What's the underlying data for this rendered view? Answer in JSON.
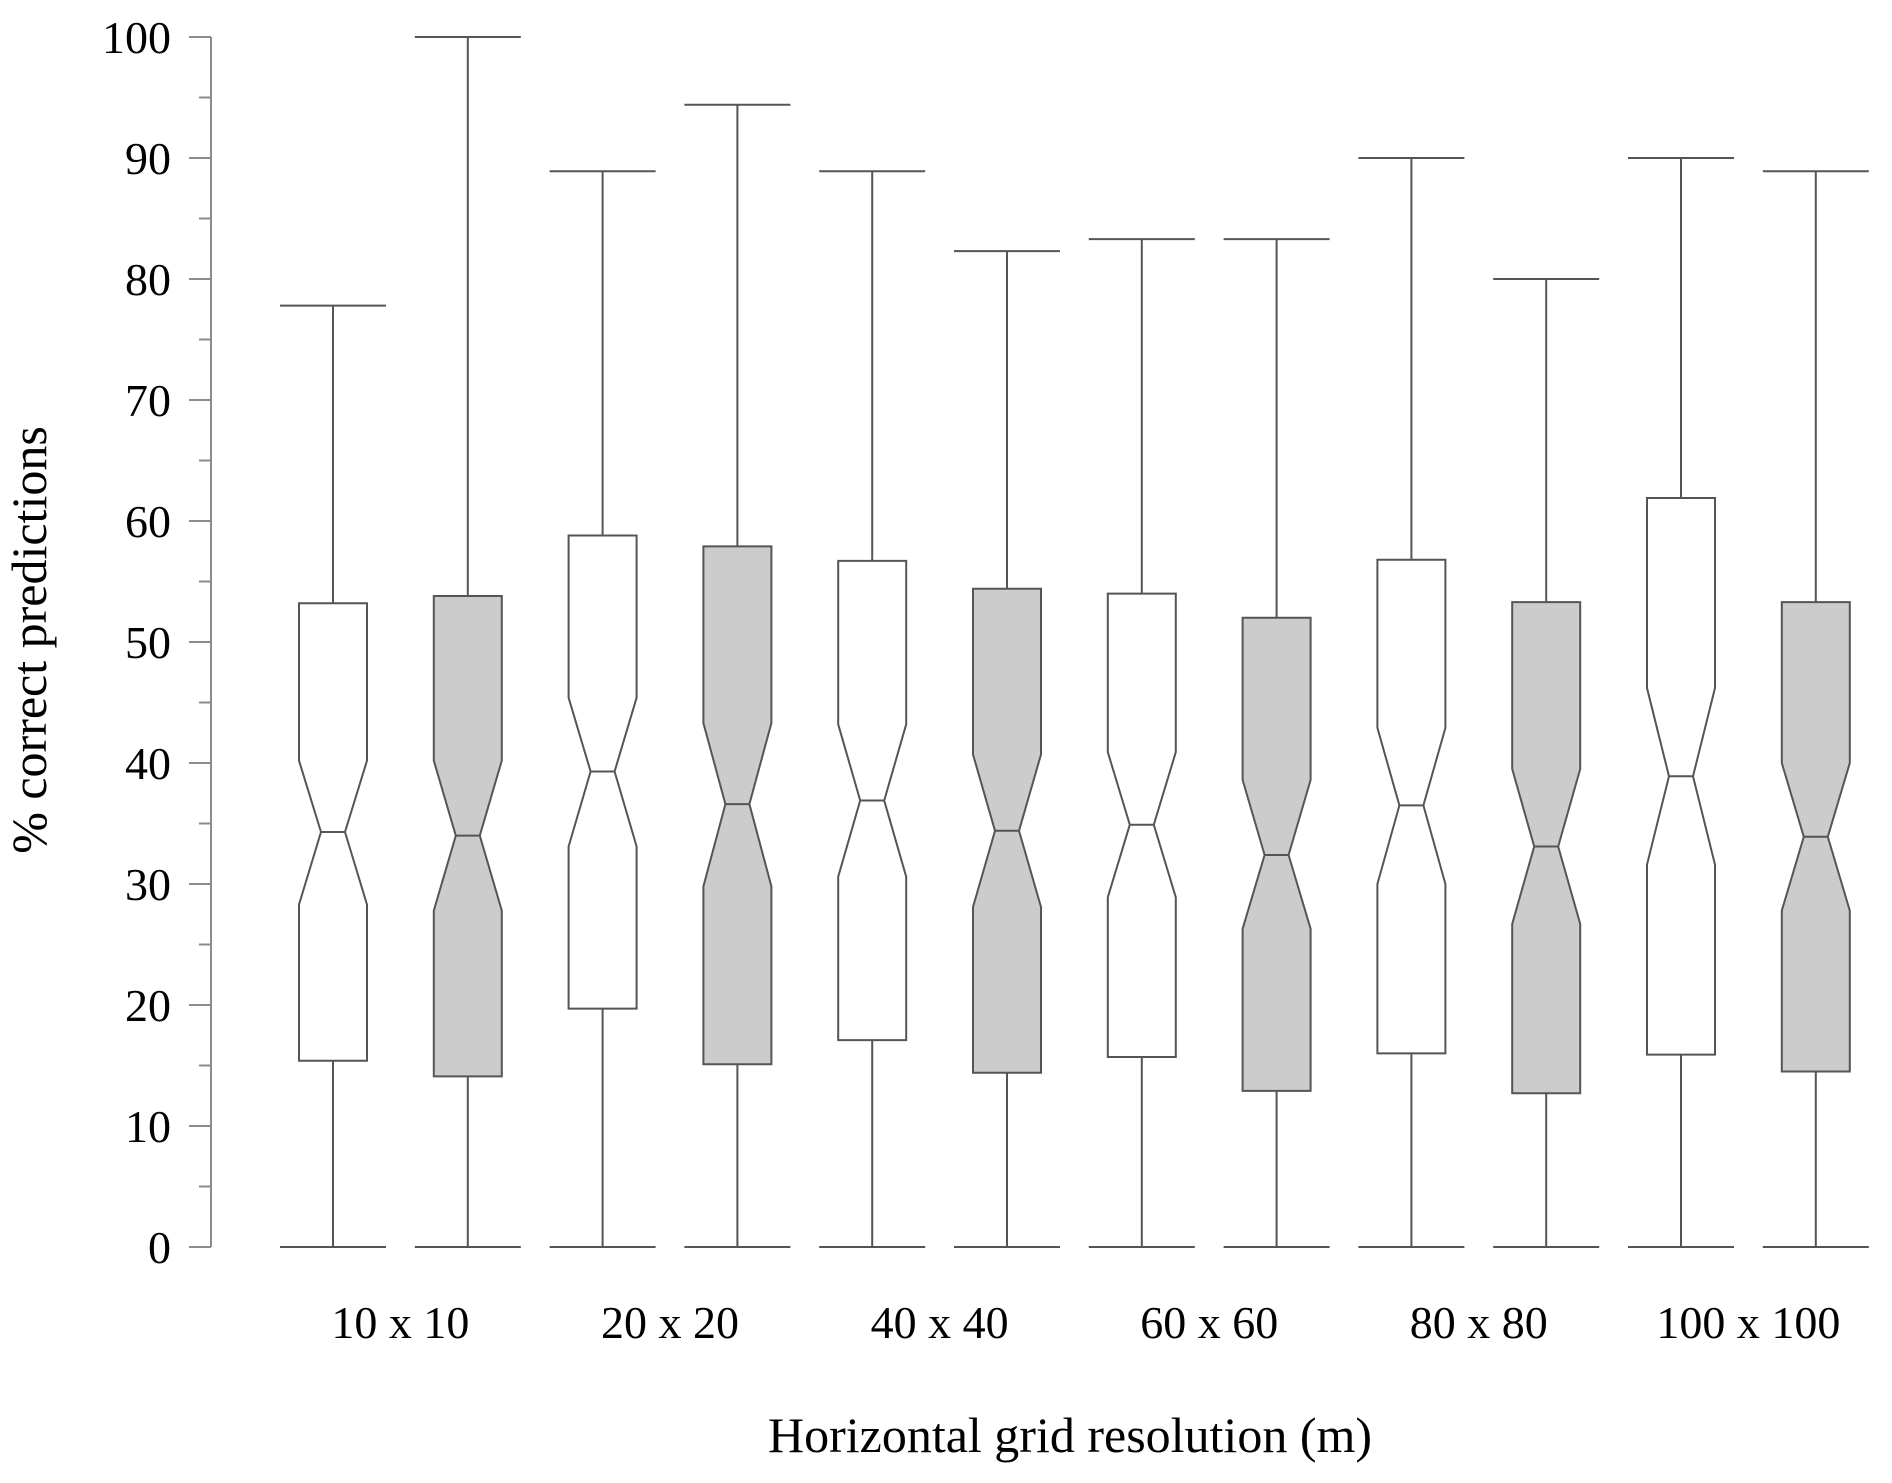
{
  "chart_data": {
    "type": "boxplot",
    "notched": true,
    "xlabel": "Horizontal grid resolution (m)",
    "ylabel": "% correct predictions",
    "ylim": [
      0,
      100
    ],
    "yticks": [
      0,
      10,
      20,
      30,
      40,
      50,
      60,
      70,
      80,
      90,
      100
    ],
    "categories": [
      "10 x 10",
      "20 x 20",
      "40 x 40",
      "60 x 60",
      "80 x 80",
      "100 x 100"
    ],
    "colors": {
      "white": "#ffffff",
      "gray": "#cccccc"
    },
    "boxes": [
      {
        "category": "10 x 10",
        "fill": "white",
        "min": 0,
        "q1": 15.4,
        "notch_low": 28.3,
        "median": 34.3,
        "notch_high": 40.2,
        "q3": 53.2,
        "max": 77.8
      },
      {
        "category": "10 x 10",
        "fill": "gray",
        "min": 0,
        "q1": 14.1,
        "notch_low": 27.8,
        "median": 34.0,
        "notch_high": 40.2,
        "q3": 53.8,
        "max": 100
      },
      {
        "category": "20 x 20",
        "fill": "white",
        "min": 0,
        "q1": 19.7,
        "notch_low": 33.1,
        "median": 39.3,
        "notch_high": 45.4,
        "q3": 58.8,
        "max": 88.9
      },
      {
        "category": "20 x 20",
        "fill": "gray",
        "min": 0,
        "q1": 15.1,
        "notch_low": 29.8,
        "median": 36.6,
        "notch_high": 43.3,
        "q3": 57.9,
        "max": 94.4
      },
      {
        "category": "40 x 40",
        "fill": "white",
        "min": 0,
        "q1": 17.1,
        "notch_low": 30.6,
        "median": 36.9,
        "notch_high": 43.2,
        "q3": 56.7,
        "max": 88.9
      },
      {
        "category": "40 x 40",
        "fill": "gray",
        "min": 0,
        "q1": 14.4,
        "notch_low": 28.1,
        "median": 34.4,
        "notch_high": 40.7,
        "q3": 54.4,
        "max": 82.3
      },
      {
        "category": "60 x 60",
        "fill": "white",
        "min": 0,
        "q1": 15.7,
        "notch_low": 28.9,
        "median": 34.9,
        "notch_high": 40.9,
        "q3": 54.0,
        "max": 83.3
      },
      {
        "category": "60 x 60",
        "fill": "gray",
        "min": 0,
        "q1": 12.9,
        "notch_low": 26.3,
        "median": 32.4,
        "notch_high": 38.6,
        "q3": 52.0,
        "max": 83.3
      },
      {
        "category": "80 x 80",
        "fill": "white",
        "min": 0,
        "q1": 16.0,
        "notch_low": 30.0,
        "median": 36.5,
        "notch_high": 42.9,
        "q3": 56.8,
        "max": 90.0
      },
      {
        "category": "80 x 80",
        "fill": "gray",
        "min": 0,
        "q1": 12.7,
        "notch_low": 26.7,
        "median": 33.1,
        "notch_high": 39.5,
        "q3": 53.3,
        "max": 80.0
      },
      {
        "category": "100 x 100",
        "fill": "white",
        "min": 0,
        "q1": 15.9,
        "notch_low": 31.6,
        "median": 38.9,
        "notch_high": 46.2,
        "q3": 61.9,
        "max": 90.0
      },
      {
        "category": "100 x 100",
        "fill": "gray",
        "min": 0,
        "q1": 14.5,
        "notch_low": 27.8,
        "median": 33.9,
        "notch_high": 40.0,
        "q3": 53.3,
        "max": 88.9
      }
    ]
  }
}
